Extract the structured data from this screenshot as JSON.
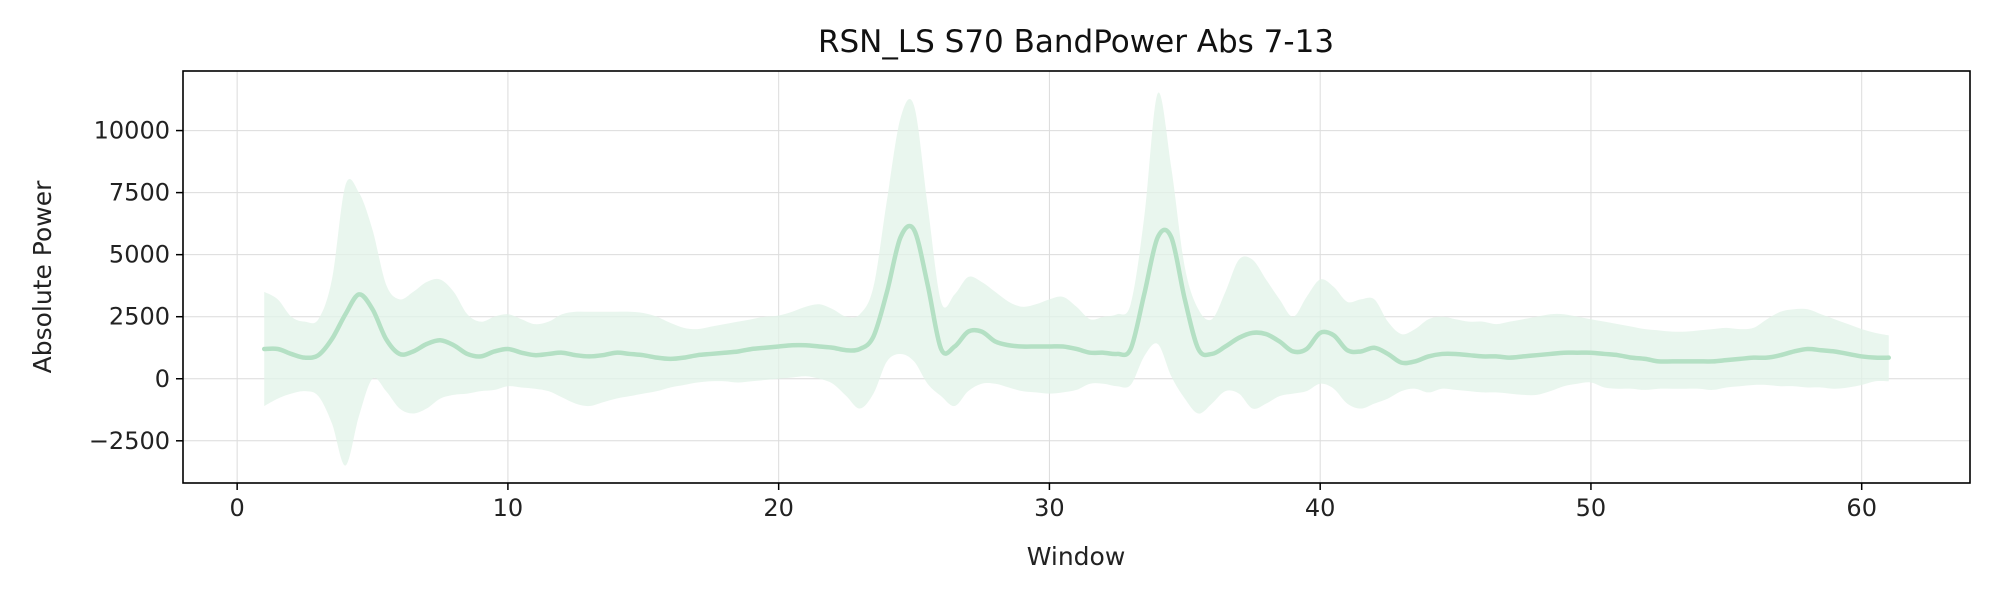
{
  "chart_data": {
    "type": "line",
    "title": "RSN_LS S70 BandPower Abs 7-13",
    "xlabel": "Window",
    "ylabel": "Absolute Power",
    "xlim": [
      -2,
      64
    ],
    "ylim": [
      -4200,
      12400
    ],
    "xticks": [
      0,
      10,
      20,
      30,
      40,
      50,
      60
    ],
    "yticks": [
      -2500,
      0,
      2500,
      5000,
      7500,
      10000
    ],
    "ytick_labels": [
      "−2500",
      "0",
      "2500",
      "5000",
      "7500",
      "10000"
    ],
    "grid": true,
    "colors": {
      "line": "#b4e0c4",
      "band": "#e2f3e8"
    },
    "series": [
      {
        "x": [
          1,
          1.5,
          2,
          2.5,
          3,
          3.5,
          4,
          4.5,
          5,
          5.5,
          6,
          6.5,
          7,
          7.5,
          8,
          8.5,
          9,
          9.5,
          10,
          10.5,
          11,
          11.5,
          12,
          12.5,
          13,
          13.5,
          14,
          14.5,
          15,
          15.5,
          16,
          16.5,
          17,
          17.5,
          18,
          18.5,
          19,
          19.5,
          20,
          20.5,
          21,
          21.5,
          22,
          22.5,
          23,
          23.5,
          24,
          24.5,
          25,
          25.5,
          26,
          26.5,
          27,
          27.5,
          28,
          28.5,
          29,
          29.5,
          30,
          30.5,
          31,
          31.5,
          32,
          32.5,
          33,
          33.5,
          34,
          34.5,
          35,
          35.5,
          36,
          36.5,
          37,
          37.5,
          38,
          38.5,
          39,
          39.5,
          40,
          40.5,
          41,
          41.5,
          42,
          42.5,
          43,
          43.5,
          44,
          44.5,
          45,
          45.5,
          46,
          46.5,
          47,
          47.5,
          48,
          48.5,
          49,
          49.5,
          50,
          50.5,
          51,
          51.5,
          52,
          52.5,
          53,
          53.5,
          54,
          54.5,
          55,
          55.5,
          56,
          56.5,
          57,
          57.5,
          58,
          58.5,
          59,
          59.5,
          60,
          60.5,
          61
        ],
        "mean": [
          1200,
          1200,
          1000,
          850,
          950,
          1600,
          2600,
          3400,
          2800,
          1600,
          1000,
          1100,
          1400,
          1550,
          1350,
          1000,
          900,
          1100,
          1200,
          1050,
          950,
          1000,
          1050,
          950,
          900,
          950,
          1050,
          1000,
          950,
          850,
          800,
          850,
          950,
          1000,
          1050,
          1100,
          1200,
          1250,
          1300,
          1350,
          1350,
          1300,
          1250,
          1150,
          1200,
          1700,
          3500,
          5700,
          6000,
          3800,
          1200,
          1300,
          1900,
          1900,
          1500,
          1350,
          1300,
          1300,
          1300,
          1300,
          1200,
          1050,
          1050,
          1000,
          1200,
          3400,
          5700,
          5700,
          3200,
          1200,
          1000,
          1300,
          1650,
          1850,
          1800,
          1500,
          1100,
          1200,
          1850,
          1750,
          1150,
          1100,
          1250,
          1000,
          650,
          700,
          900,
          1000,
          1000,
          950,
          900,
          900,
          850,
          900,
          950,
          1000,
          1050,
          1050,
          1050,
          1000,
          950,
          850,
          800,
          700,
          700,
          700,
          700,
          700,
          750,
          800,
          850,
          850,
          950,
          1100,
          1200,
          1150,
          1100,
          1000,
          900,
          850,
          850
        ],
        "lower": [
          -1100,
          -800,
          -600,
          -500,
          -700,
          -1800,
          -3500,
          -1500,
          0,
          -500,
          -1200,
          -1400,
          -1200,
          -800,
          -650,
          -600,
          -500,
          -450,
          -300,
          -350,
          -400,
          -500,
          -750,
          -1000,
          -1100,
          -950,
          -800,
          -700,
          -600,
          -500,
          -350,
          -250,
          -150,
          -100,
          -100,
          -150,
          -100,
          -50,
          0,
          50,
          100,
          0,
          -200,
          -700,
          -1200,
          -600,
          700,
          1000,
          700,
          -200,
          -700,
          -1100,
          -500,
          -200,
          -200,
          -350,
          -500,
          -550,
          -600,
          -550,
          -450,
          -200,
          -200,
          -300,
          -250,
          900,
          1400,
          100,
          -800,
          -1400,
          -1000,
          -500,
          -600,
          -1200,
          -1000,
          -700,
          -600,
          -500,
          -200,
          -400,
          -1000,
          -1200,
          -1000,
          -800,
          -500,
          -400,
          -550,
          -400,
          -450,
          -500,
          -550,
          -550,
          -600,
          -650,
          -650,
          -500,
          -300,
          -200,
          -150,
          -350,
          -400,
          -400,
          -450,
          -400,
          -400,
          -400,
          -400,
          -450,
          -350,
          -300,
          -250,
          -250,
          -300,
          -300,
          -350,
          -350,
          -400,
          -350,
          -250,
          -100,
          -100
        ],
        "upper": [
          3500,
          3200,
          2500,
          2300,
          2400,
          4000,
          7800,
          7500,
          6000,
          3800,
          3200,
          3500,
          3900,
          4000,
          3500,
          2600,
          2300,
          2500,
          2600,
          2400,
          2200,
          2300,
          2600,
          2700,
          2700,
          2700,
          2700,
          2700,
          2650,
          2500,
          2250,
          2050,
          2000,
          2100,
          2200,
          2300,
          2400,
          2500,
          2550,
          2700,
          2900,
          3000,
          2800,
          2500,
          2600,
          3700,
          7200,
          10500,
          11000,
          7000,
          3100,
          3400,
          4100,
          3900,
          3500,
          3100,
          2900,
          3000,
          3200,
          3300,
          2900,
          2400,
          2500,
          2600,
          3000,
          6500,
          11500,
          8500,
          4500,
          2800,
          2400,
          3500,
          4800,
          4800,
          4000,
          3200,
          2500,
          3300,
          4000,
          3700,
          3100,
          3200,
          3200,
          2300,
          1800,
          2000,
          2400,
          2500,
          2400,
          2300,
          2300,
          2200,
          2300,
          2400,
          2500,
          2600,
          2600,
          2500,
          2400,
          2300,
          2200,
          2100,
          2000,
          1950,
          1900,
          1900,
          1950,
          2000,
          2050,
          2000,
          2050,
          2400,
          2700,
          2800,
          2800,
          2600,
          2400,
          2200,
          2000,
          1850,
          1750
        ]
      }
    ]
  }
}
